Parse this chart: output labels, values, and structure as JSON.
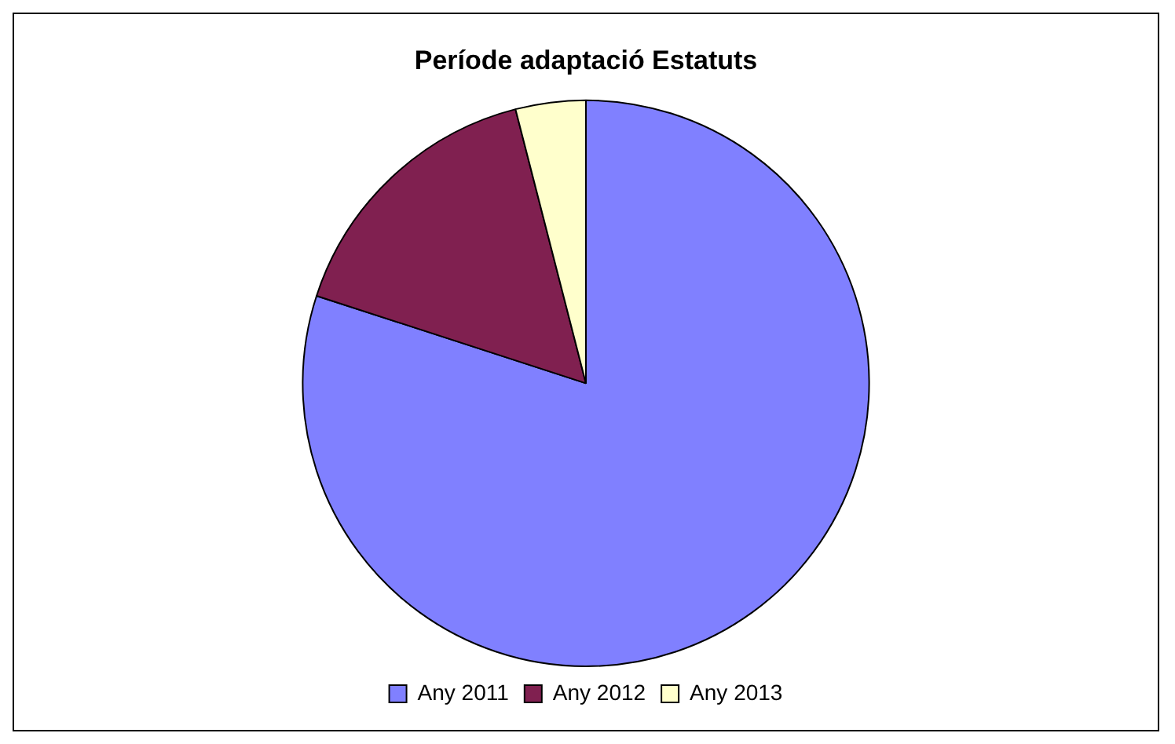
{
  "chart_data": {
    "type": "pie",
    "title": "Període adaptació Estatuts",
    "categories": [
      "Any 2011",
      "Any 2012",
      "Any 2013"
    ],
    "values": [
      80,
      16,
      4
    ],
    "colors": [
      "#8080ff",
      "#802050",
      "#ffffcc"
    ],
    "legend": "bottom"
  }
}
